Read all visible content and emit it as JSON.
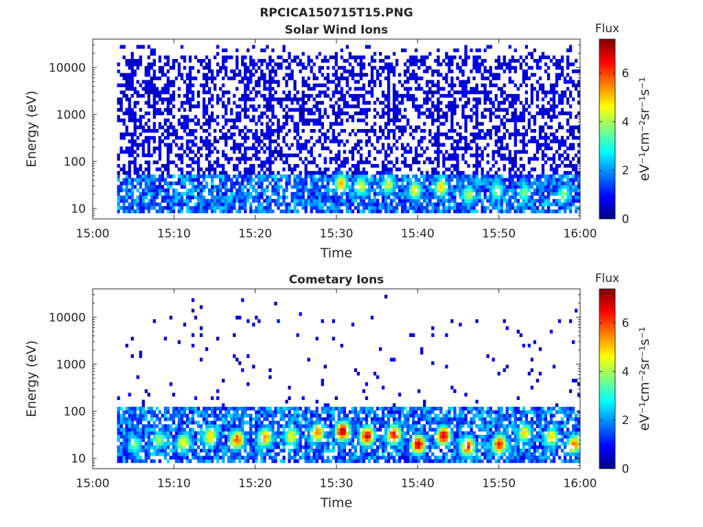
{
  "figure": {
    "title": "RPCICA150715T15.PNG",
    "background": "#ffffff"
  },
  "chart_data": [
    {
      "type": "heatmap",
      "title": "Solar Wind Ions",
      "xlabel": "Time",
      "ylabel": "Energy (eV)",
      "x_ticks": [
        "15:00",
        "15:10",
        "15:20",
        "15:30",
        "15:40",
        "15:50",
        "16:00"
      ],
      "xlim_minutes": [
        0,
        60
      ],
      "y_scale": "log",
      "ylim": [
        6,
        40000
      ],
      "y_ticks": [
        10,
        100,
        1000,
        10000
      ],
      "y_tick_labels": [
        "10",
        "100",
        "1000",
        "10000"
      ],
      "data_start_minute": 3,
      "colorbar": {
        "label_top": "Flux",
        "unit": "eV⁻¹cm⁻²sr⁻¹s⁻¹",
        "range": [
          0,
          7.4
        ],
        "ticks": [
          0,
          2,
          4,
          6
        ],
        "tick_labels": [
          "0",
          "2",
          "4",
          "6"
        ],
        "colormap": "jet"
      },
      "background_flux_high_energy": 0.6,
      "low_energy_band_eV": [
        10,
        50
      ],
      "enhancements": [
        {
          "minute": 30.4,
          "energy_eV": 35,
          "flux": 5.0
        },
        {
          "minute": 32.8,
          "energy_eV": 30,
          "flux": 4.4
        },
        {
          "minute": 36.2,
          "energy_eV": 32,
          "flux": 4.2
        },
        {
          "minute": 39.5,
          "energy_eV": 25,
          "flux": 4.6
        },
        {
          "minute": 42.7,
          "energy_eV": 28,
          "flux": 4.8
        },
        {
          "minute": 46.1,
          "energy_eV": 20,
          "flux": 4.0
        },
        {
          "minute": 49.6,
          "energy_eV": 24,
          "flux": 3.8
        },
        {
          "minute": 53.0,
          "energy_eV": 22,
          "flux": 3.6
        },
        {
          "minute": 57.8,
          "energy_eV": 20,
          "flux": 3.6
        }
      ]
    },
    {
      "type": "heatmap",
      "title": "Cometary Ions",
      "xlabel": "Time",
      "ylabel": "Energy (eV)",
      "x_ticks": [
        "15:00",
        "15:10",
        "15:20",
        "15:30",
        "15:40",
        "15:50",
        "16:00"
      ],
      "xlim_minutes": [
        0,
        60
      ],
      "y_scale": "log",
      "ylim": [
        6,
        40000
      ],
      "y_ticks": [
        10,
        100,
        1000,
        10000
      ],
      "y_tick_labels": [
        "10",
        "100",
        "1000",
        "10000"
      ],
      "data_start_minute": 3,
      "colorbar": {
        "label_top": "Flux",
        "unit": "eV⁻¹cm⁻²sr⁻¹s⁻¹",
        "range": [
          0,
          7.4
        ],
        "ticks": [
          0,
          2,
          4,
          6
        ],
        "tick_labels": [
          "0",
          "2",
          "4",
          "6"
        ],
        "colormap": "jet"
      },
      "background_flux_high_energy": 0.4,
      "low_energy_band_eV": [
        10,
        130
      ],
      "enhancements": [
        {
          "minute": 5.0,
          "energy_eV": 20,
          "flux": 3.5
        },
        {
          "minute": 8.0,
          "energy_eV": 25,
          "flux": 3.8
        },
        {
          "minute": 11.0,
          "energy_eV": 22,
          "flux": 4.5
        },
        {
          "minute": 14.3,
          "energy_eV": 30,
          "flux": 4.8
        },
        {
          "minute": 17.6,
          "energy_eV": 25,
          "flux": 5.8
        },
        {
          "minute": 21.0,
          "energy_eV": 28,
          "flux": 5.2
        },
        {
          "minute": 24.3,
          "energy_eV": 30,
          "flux": 4.5
        },
        {
          "minute": 27.5,
          "energy_eV": 35,
          "flux": 5.4
        },
        {
          "minute": 30.6,
          "energy_eV": 38,
          "flux": 6.8
        },
        {
          "minute": 33.6,
          "energy_eV": 30,
          "flux": 6.4
        },
        {
          "minute": 36.9,
          "energy_eV": 32,
          "flux": 6.2
        },
        {
          "minute": 39.9,
          "energy_eV": 20,
          "flux": 6.6
        },
        {
          "minute": 43.0,
          "energy_eV": 30,
          "flux": 6.6
        },
        {
          "minute": 46.0,
          "energy_eV": 18,
          "flux": 6.0
        },
        {
          "minute": 49.9,
          "energy_eV": 20,
          "flux": 6.2
        },
        {
          "minute": 53.0,
          "energy_eV": 35,
          "flux": 4.6
        },
        {
          "minute": 56.3,
          "energy_eV": 28,
          "flux": 4.8
        },
        {
          "minute": 59.1,
          "energy_eV": 20,
          "flux": 5.4
        }
      ]
    }
  ]
}
